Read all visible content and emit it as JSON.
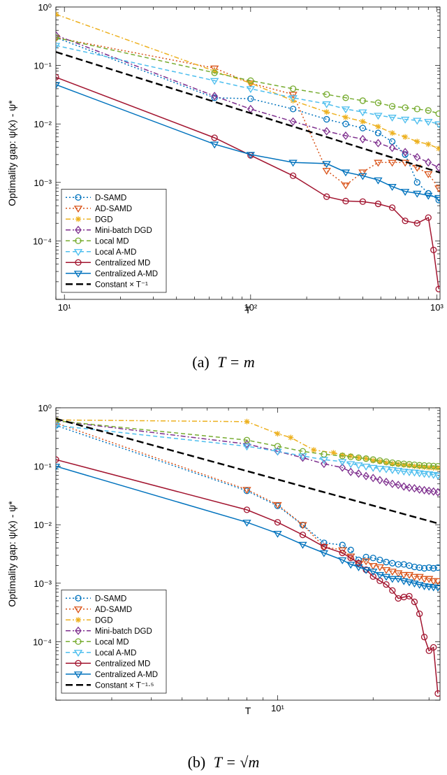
{
  "chart_data": [
    {
      "type": "line",
      "panel": "a",
      "caption": "(a) T = m",
      "xscale": "log",
      "yscale": "log",
      "xlim": [
        9,
        1040
      ],
      "ylim": [
        1e-05,
        1
      ],
      "xlabel": "T",
      "ylabel": "Optimality gap: ψ(x) - ψ*",
      "xticks": [
        {
          "v": 10,
          "label": "10¹"
        },
        {
          "v": 100,
          "label": "10²"
        },
        {
          "v": 1000,
          "label": "10³"
        }
      ],
      "yticks": [
        {
          "v": 1,
          "label": "10⁰"
        },
        {
          "v": 0.1,
          "label": "10⁻¹"
        },
        {
          "v": 0.01,
          "label": "10⁻²"
        },
        {
          "v": 0.001,
          "label": "10⁻³"
        },
        {
          "v": 0.0001,
          "label": "10⁻⁴"
        }
      ],
      "legend_location": "bottom-left",
      "series": [
        {
          "name": "D-SAMD",
          "color": "#0072BD",
          "dash": "2,3",
          "marker": "circle",
          "x": [
            9,
            64,
            100,
            169,
            256,
            324,
            400,
            484,
            576,
            676,
            784,
            900,
            1024
          ],
          "y": [
            0.3,
            0.028,
            0.027,
            0.018,
            0.012,
            0.01,
            0.0085,
            0.007,
            0.005,
            0.003,
            0.001,
            0.00065,
            0.0005
          ]
        },
        {
          "name": "AD-SAMD",
          "color": "#D95319",
          "dash": "2,3",
          "marker": "triangle-down",
          "x": [
            9,
            64,
            100,
            169,
            256,
            324,
            400,
            484,
            576,
            676,
            784,
            900,
            1024
          ],
          "y": [
            0.3,
            0.09,
            0.05,
            0.032,
            0.0016,
            0.0009,
            0.0015,
            0.0022,
            0.0022,
            0.0022,
            0.0018,
            0.0014,
            0.0008
          ]
        },
        {
          "name": "DGD",
          "color": "#EDB120",
          "dash": "7,3,2,3",
          "marker": "star",
          "x": [
            9,
            64,
            100,
            169,
            256,
            324,
            400,
            484,
            576,
            676,
            784,
            900,
            1024
          ],
          "y": [
            0.75,
            0.08,
            0.05,
            0.025,
            0.016,
            0.013,
            0.011,
            0.009,
            0.007,
            0.006,
            0.005,
            0.0045,
            0.0038
          ]
        },
        {
          "name": "Mini-batch DGD",
          "color": "#7E2F8E",
          "dash": "7,3,2,3",
          "marker": "diamond",
          "x": [
            9,
            64,
            100,
            169,
            256,
            324,
            400,
            484,
            576,
            676,
            784,
            900,
            1024
          ],
          "y": [
            0.33,
            0.03,
            0.018,
            0.011,
            0.0075,
            0.0063,
            0.0055,
            0.0047,
            0.0039,
            0.0033,
            0.0027,
            0.0022,
            0.0018
          ]
        },
        {
          "name": "Local MD",
          "color": "#77AC30",
          "dash": "6,4",
          "marker": "circle",
          "x": [
            9,
            64,
            100,
            169,
            256,
            324,
            400,
            484,
            576,
            676,
            784,
            900,
            1024
          ],
          "y": [
            0.3,
            0.075,
            0.055,
            0.04,
            0.032,
            0.028,
            0.025,
            0.023,
            0.02,
            0.019,
            0.018,
            0.017,
            0.015
          ]
        },
        {
          "name": "Local A-MD",
          "color": "#4DBEEE",
          "dash": "6,4",
          "marker": "triangle-down",
          "x": [
            9,
            64,
            100,
            169,
            256,
            324,
            400,
            484,
            576,
            676,
            784,
            900,
            1024
          ],
          "y": [
            0.22,
            0.055,
            0.04,
            0.028,
            0.022,
            0.018,
            0.016,
            0.014,
            0.013,
            0.012,
            0.0115,
            0.011,
            0.01
          ]
        },
        {
          "name": "Centralized MD",
          "color": "#A2142F",
          "dash": "",
          "marker": "circle",
          "x": [
            9,
            64,
            100,
            169,
            256,
            324,
            400,
            484,
            576,
            676,
            784,
            900,
            960,
            1024
          ],
          "y": [
            0.063,
            0.0058,
            0.0029,
            0.0013,
            0.00057,
            0.00048,
            0.00047,
            0.00043,
            0.00037,
            0.00022,
            0.0002,
            0.00025,
            7e-05,
            1.5e-05
          ]
        },
        {
          "name": "Centralized A-MD",
          "color": "#0072BD",
          "dash": "",
          "marker": "triangle-down",
          "x": [
            9,
            64,
            100,
            169,
            256,
            324,
            400,
            484,
            576,
            676,
            784,
            900,
            1024
          ],
          "y": [
            0.047,
            0.0045,
            0.003,
            0.0022,
            0.0021,
            0.0015,
            0.0013,
            0.0011,
            0.00085,
            0.0007,
            0.00065,
            0.0006,
            0.00055
          ]
        },
        {
          "name": "Constant × T⁻¹",
          "color": "#000000",
          "dash": "10,5",
          "marker": "none",
          "x": [
            9,
            1040
          ],
          "y": [
            0.17,
            0.00147
          ]
        }
      ]
    },
    {
      "type": "line",
      "panel": "b",
      "caption": "(b) T = √m",
      "xscale": "log",
      "yscale": "log",
      "xlim": [
        2,
        32.5
      ],
      "ylim": [
        1e-05,
        1
      ],
      "xlabel": "T",
      "ylabel": "Optimality gap: ψ(x) - ψ*",
      "xticks": [
        {
          "v": 10,
          "label": "10¹"
        }
      ],
      "yticks": [
        {
          "v": 1,
          "label": "10⁰"
        },
        {
          "v": 0.1,
          "label": "10⁻¹"
        },
        {
          "v": 0.01,
          "label": "10⁻²"
        },
        {
          "v": 0.001,
          "label": "10⁻³"
        },
        {
          "v": 0.0001,
          "label": "10⁻⁴"
        }
      ],
      "legend_location": "bottom-left",
      "series": [
        {
          "name": "D-SAMD",
          "color": "#0072BD",
          "dash": "2,3",
          "marker": "circle",
          "x": [
            2,
            8,
            10,
            12,
            14,
            16,
            17,
            18,
            19,
            20,
            21,
            22,
            23,
            24,
            25,
            26,
            27,
            28,
            29,
            30,
            31,
            32
          ],
          "y": [
            0.5,
            0.038,
            0.021,
            0.0099,
            0.0049,
            0.0045,
            0.0037,
            0.0025,
            0.0028,
            0.0027,
            0.0025,
            0.0023,
            0.0022,
            0.0021,
            0.0021,
            0.002,
            0.0019,
            0.00185,
            0.0018,
            0.00185,
            0.0018,
            0.00185
          ]
        },
        {
          "name": "AD-SAMD",
          "color": "#D95319",
          "dash": "2,3",
          "marker": "triangle-down",
          "x": [
            2,
            8,
            10,
            12,
            14,
            16,
            17,
            18,
            19,
            20,
            21,
            22,
            23,
            24,
            25,
            26,
            27,
            28,
            29,
            30,
            31,
            32
          ],
          "y": [
            0.55,
            0.04,
            0.022,
            0.01,
            0.0042,
            0.0037,
            0.0029,
            0.0022,
            0.0024,
            0.002,
            0.0019,
            0.0017,
            0.0016,
            0.0015,
            0.0014,
            0.0014,
            0.0013,
            0.0013,
            0.0012,
            0.0012,
            0.0011,
            0.0011
          ]
        },
        {
          "name": "DGD",
          "color": "#EDB120",
          "dash": "7,3,2,3",
          "marker": "star",
          "x": [
            2,
            8,
            10,
            11,
            13,
            15,
            16,
            17,
            18,
            19,
            20,
            21,
            22,
            23,
            24,
            25,
            26,
            27,
            28,
            29,
            30,
            31,
            32
          ],
          "y": [
            0.62,
            0.58,
            0.36,
            0.31,
            0.19,
            0.17,
            0.155,
            0.15,
            0.14,
            0.135,
            0.125,
            0.12,
            0.115,
            0.11,
            0.108,
            0.105,
            0.103,
            0.1,
            0.099,
            0.097,
            0.095,
            0.094,
            0.093
          ]
        },
        {
          "name": "Mini-batch DGD",
          "color": "#7E2F8E",
          "dash": "7,3,2,3",
          "marker": "diamond",
          "x": [
            2,
            8,
            10,
            12,
            14,
            16,
            17,
            18,
            19,
            20,
            21,
            22,
            23,
            24,
            25,
            26,
            27,
            28,
            29,
            30,
            31,
            32
          ],
          "y": [
            0.6,
            0.24,
            0.18,
            0.14,
            0.11,
            0.095,
            0.08,
            0.075,
            0.068,
            0.063,
            0.058,
            0.054,
            0.05,
            0.048,
            0.045,
            0.043,
            0.042,
            0.04,
            0.039,
            0.038,
            0.037,
            0.036
          ]
        },
        {
          "name": "Local MD",
          "color": "#77AC30",
          "dash": "6,4",
          "marker": "circle",
          "x": [
            2,
            8,
            10,
            12,
            14,
            16,
            17,
            18,
            19,
            20,
            21,
            22,
            23,
            24,
            25,
            26,
            27,
            28,
            29,
            30,
            31,
            32
          ],
          "y": [
            0.6,
            0.28,
            0.22,
            0.18,
            0.16,
            0.15,
            0.145,
            0.14,
            0.135,
            0.13,
            0.125,
            0.12,
            0.115,
            0.112,
            0.11,
            0.108,
            0.106,
            0.104,
            0.103,
            0.102,
            0.101,
            0.1
          ]
        },
        {
          "name": "Local A-MD",
          "color": "#4DBEEE",
          "dash": "6,4",
          "marker": "triangle-down",
          "x": [
            2,
            8,
            10,
            12,
            14,
            16,
            17,
            18,
            19,
            20,
            21,
            22,
            23,
            24,
            25,
            26,
            27,
            28,
            29,
            30,
            31,
            32
          ],
          "y": [
            0.5,
            0.22,
            0.18,
            0.15,
            0.13,
            0.12,
            0.11,
            0.105,
            0.1,
            0.095,
            0.092,
            0.09,
            0.087,
            0.085,
            0.082,
            0.08,
            0.079,
            0.077,
            0.075,
            0.074,
            0.072,
            0.07
          ]
        },
        {
          "name": "Centralized MD",
          "color": "#A2142F",
          "dash": "",
          "marker": "circle",
          "x": [
            2,
            8,
            10,
            12,
            14,
            16,
            17,
            18,
            19,
            20,
            21,
            22,
            23,
            24,
            25,
            26,
            27,
            28,
            29,
            30,
            31,
            32
          ],
          "y": [
            0.13,
            0.018,
            0.011,
            0.0067,
            0.0042,
            0.0033,
            0.0027,
            0.0022,
            0.0017,
            0.0013,
            0.0011,
            0.00095,
            0.00075,
            0.00055,
            0.00058,
            0.0006,
            0.00048,
            0.0003,
            0.00012,
            7e-05,
            8e-05,
            1.3e-05
          ]
        },
        {
          "name": "Centralized A-MD",
          "color": "#0072BD",
          "dash": "",
          "marker": "triangle-down",
          "x": [
            2,
            8,
            10,
            12,
            14,
            16,
            17,
            18,
            19,
            20,
            21,
            22,
            23,
            24,
            25,
            26,
            27,
            28,
            29,
            30,
            31,
            32
          ],
          "y": [
            0.1,
            0.011,
            0.0071,
            0.0046,
            0.0033,
            0.0025,
            0.0021,
            0.0019,
            0.0017,
            0.0016,
            0.0014,
            0.0013,
            0.0012,
            0.0012,
            0.0011,
            0.00105,
            0.001,
            0.00095,
            0.0009,
            0.00088,
            0.00086,
            0.00085
          ]
        },
        {
          "name": "Constant × T⁻¹·⁵",
          "color": "#000000",
          "dash": "10,5",
          "marker": "none",
          "x": [
            2,
            32.5
          ],
          "y": [
            0.65,
            0.0103
          ]
        }
      ]
    }
  ],
  "figure": {
    "caption_a_prefix": "(a)",
    "caption_a_formula": "T = m",
    "caption_b_prefix": "(b)",
    "caption_b_formula": "T = √m"
  }
}
